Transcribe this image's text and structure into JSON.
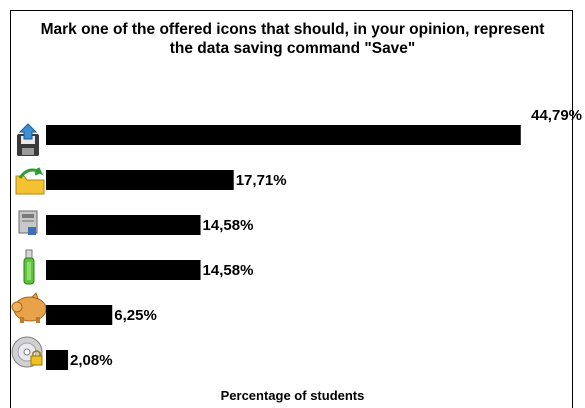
{
  "chart_data": {
    "type": "bar",
    "orientation": "horizontal",
    "title": "Mark one of the offered icons that should, in your opinion, represent the data saving command \"Save\"",
    "xlabel": "Percentage of students",
    "ylabel": "",
    "categories": [
      "floppy-upload-icon",
      "folder-arrow-icon",
      "drive-icon",
      "usb-stick-icon",
      "piggy-bank-icon",
      "cd-lock-icon"
    ],
    "values": [
      44.79,
      17.71,
      14.58,
      14.58,
      6.25,
      2.08
    ],
    "data_labels": [
      "44,79%",
      "17,71%",
      "14,58%",
      "14,58%",
      "6,25%",
      "2,08%"
    ],
    "xlim": [
      0,
      45
    ],
    "grid": false,
    "legend": "none",
    "colors": {
      "bar": "#000000",
      "text": "#000000"
    }
  }
}
